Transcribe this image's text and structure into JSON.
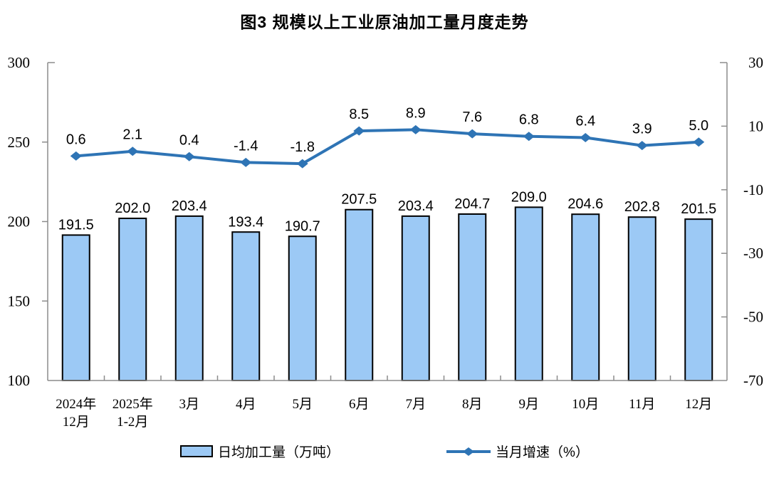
{
  "title": "图3 规模以上工业原油加工量月度走势",
  "chart_data": {
    "type": "combo-bar-line",
    "categories": [
      "2024年\n12月",
      "2025年\n1-2月",
      "3月",
      "4月",
      "5月",
      "6月",
      "7月",
      "8月",
      "9月",
      "10月",
      "11月",
      "12月"
    ],
    "series": [
      {
        "name": "日均加工量（万吨）",
        "type": "bar",
        "axis": "left",
        "values": [
          191.5,
          202.0,
          203.4,
          193.4,
          190.7,
          207.5,
          203.4,
          204.7,
          209.0,
          204.6,
          202.8,
          201.5
        ],
        "labels": [
          "191.5",
          "202.0",
          "203.4",
          "193.4",
          "190.7",
          "207.5",
          "203.4",
          "204.7",
          "209.0",
          "204.6",
          "202.8",
          "201.5"
        ],
        "fill": "#9CC9F5",
        "stroke": "#000000"
      },
      {
        "name": "当月增速（%）",
        "type": "line",
        "axis": "right",
        "values": [
          0.6,
          2.1,
          0.4,
          -1.4,
          -1.8,
          8.5,
          8.9,
          7.6,
          6.8,
          6.4,
          3.9,
          5.0
        ],
        "labels": [
          "0.6",
          "2.1",
          "0.4",
          "-1.4",
          "-1.8",
          "8.5",
          "8.9",
          "7.6",
          "6.8",
          "6.4",
          "3.9",
          "5.0"
        ],
        "color": "#2E74B5",
        "marker": "diamond"
      }
    ],
    "left_axis": {
      "min": 100,
      "max": 300,
      "ticks": [
        300,
        250,
        200,
        150,
        100
      ]
    },
    "right_axis": {
      "min": -70,
      "max": 30,
      "ticks": [
        30,
        10,
        -10,
        -30,
        -50,
        -70
      ]
    },
    "grid": false,
    "legend_position": "bottom",
    "axis_color": "#8C8C8C",
    "text_color": "#000000"
  }
}
